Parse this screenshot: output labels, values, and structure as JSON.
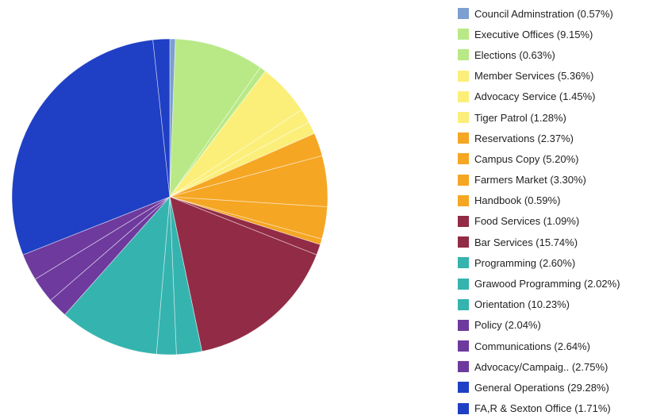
{
  "chart_data": {
    "type": "pie",
    "legend_position": "right",
    "slices": [
      {
        "label": "Council Adminstration (0.57%)",
        "value": 0.57,
        "color": "#7d9fd1"
      },
      {
        "label": "Executive Offices (9.15%)",
        "value": 9.15,
        "color": "#b8e986"
      },
      {
        "label": "Elections (0.63%)",
        "value": 0.63,
        "color": "#b8e986"
      },
      {
        "label": "Member Services (5.36%)",
        "value": 5.36,
        "color": "#fbef7a"
      },
      {
        "label": "Advocacy Service (1.45%)",
        "value": 1.45,
        "color": "#fbef7a"
      },
      {
        "label": "Tiger Patrol (1.28%)",
        "value": 1.28,
        "color": "#fbef7a"
      },
      {
        "label": "Reservations (2.37%)",
        "value": 2.37,
        "color": "#f5a623"
      },
      {
        "label": "Campus Copy (5.20%)",
        "value": 5.2,
        "color": "#f5a623"
      },
      {
        "label": "Farmers Market (3.30%)",
        "value": 3.3,
        "color": "#f5a623"
      },
      {
        "label": "Handbook (0.59%)",
        "value": 0.59,
        "color": "#f5a623"
      },
      {
        "label": "Food Services (1.09%)",
        "value": 1.09,
        "color": "#922b45"
      },
      {
        "label": "Bar Services (15.74%)",
        "value": 15.74,
        "color": "#922b45"
      },
      {
        "label": "Programming (2.60%)",
        "value": 2.6,
        "color": "#35b3af"
      },
      {
        "label": "Grawood Programming (2.02%)",
        "value": 2.02,
        "color": "#35b3af"
      },
      {
        "label": "Orientation (10.23%)",
        "value": 10.23,
        "color": "#35b3af"
      },
      {
        "label": "Policy (2.04%)",
        "value": 2.04,
        "color": "#6e3a9e"
      },
      {
        "label": "Communications (2.64%)",
        "value": 2.64,
        "color": "#6e3a9e"
      },
      {
        "label": "Advocacy/Campaig.. (2.75%)",
        "value": 2.75,
        "color": "#6e3a9e"
      },
      {
        "label": "General Operations (29.28%)",
        "value": 29.28,
        "color": "#1f3fc4"
      },
      {
        "label": "FA,R & Sexton Office (1.71%)",
        "value": 1.71,
        "color": "#1f3fc4"
      }
    ]
  }
}
